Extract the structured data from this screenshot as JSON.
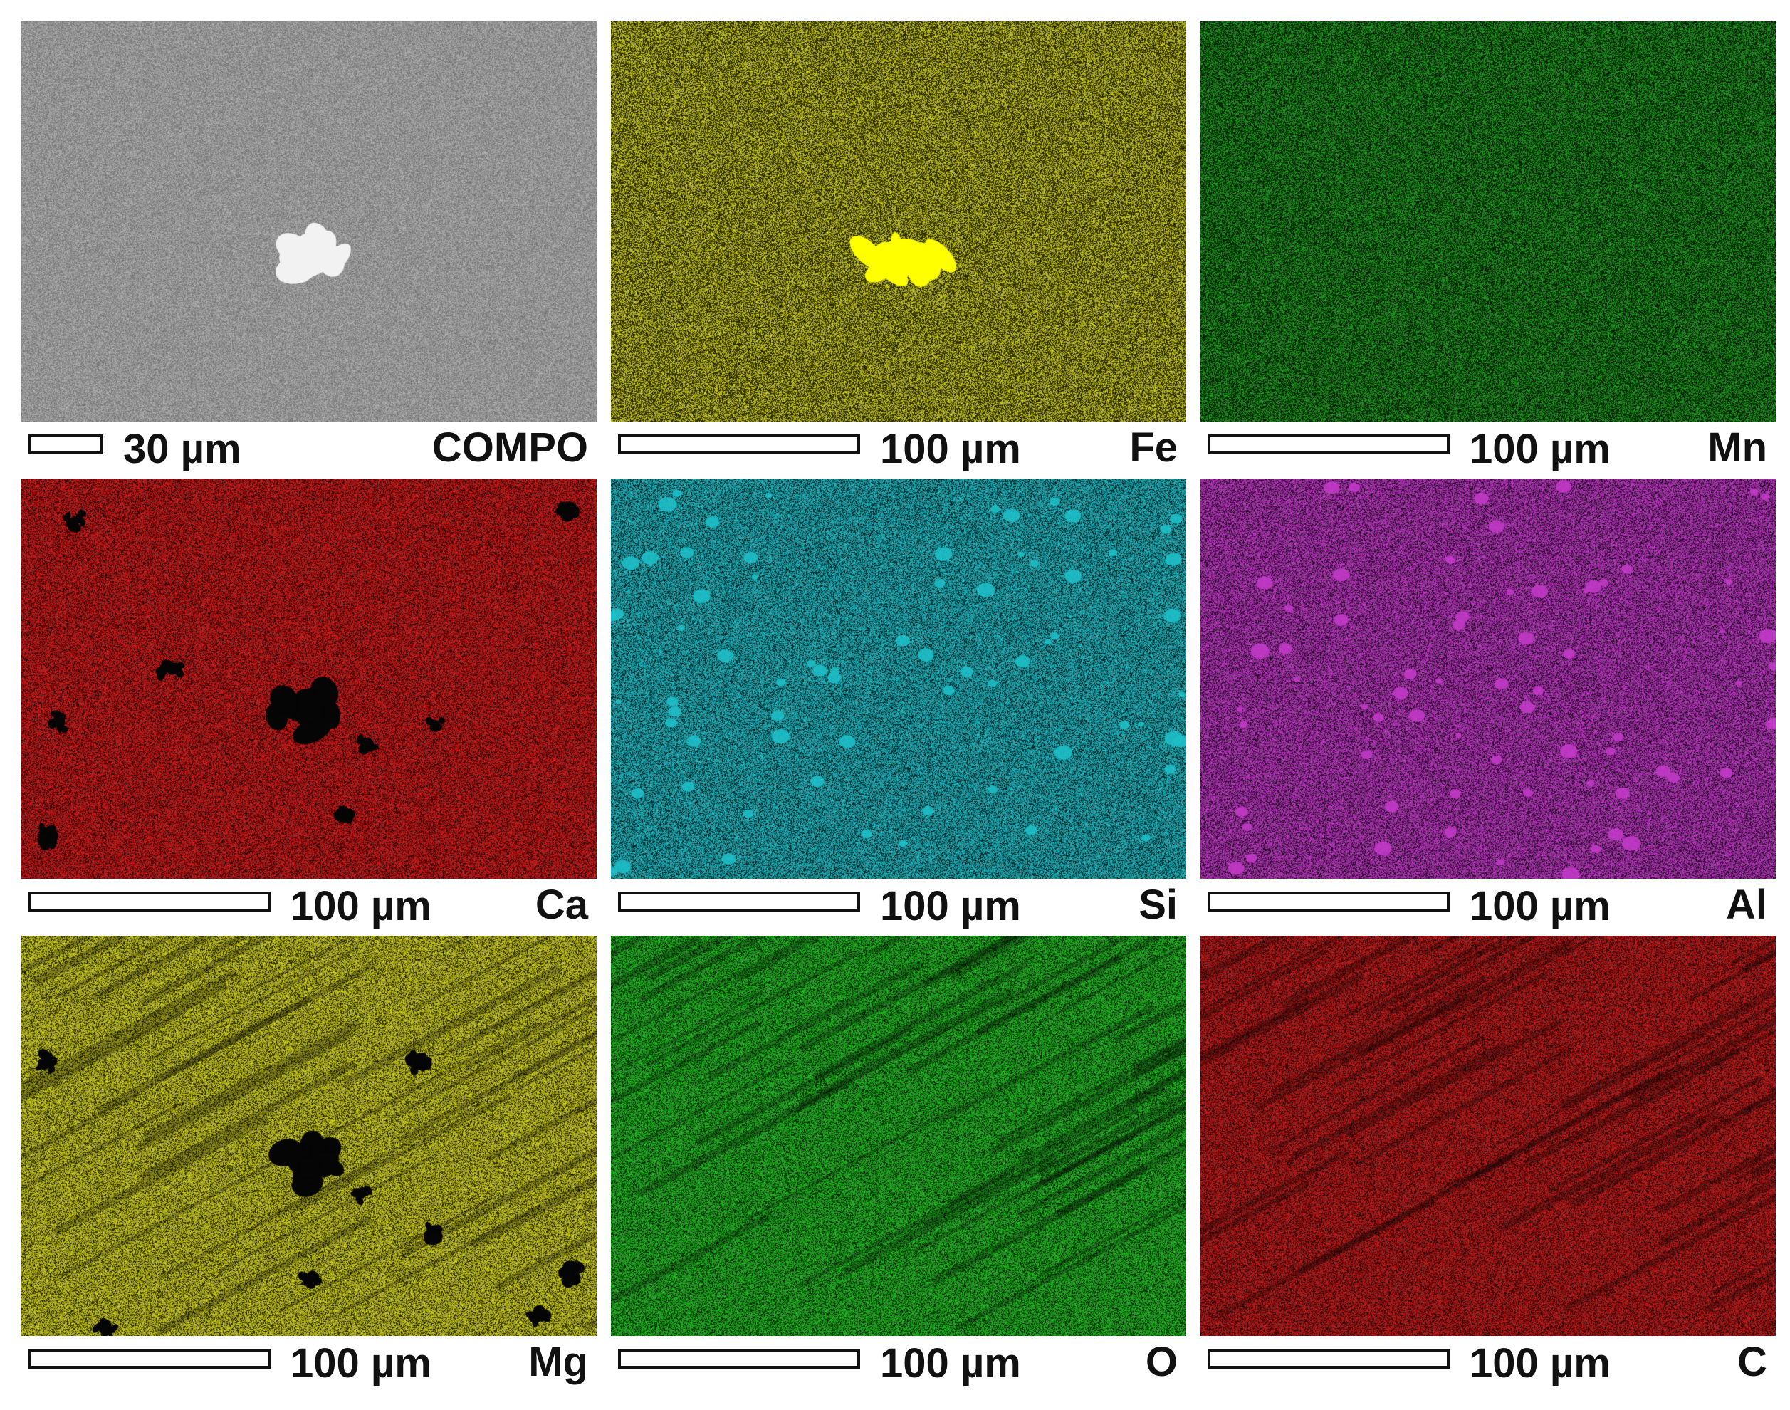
{
  "panels": [
    {
      "scale_label": "30 µm",
      "element": "COMPO",
      "color": "#9a9a9a",
      "feature": "bright"
    },
    {
      "scale_label": "100 µm",
      "element": "Fe",
      "color": "#d8d81a",
      "feature": "bright"
    },
    {
      "scale_label": "100 µm",
      "element": "Mn",
      "color": "#1fa51f",
      "feature": "none"
    },
    {
      "scale_label": "100 µm",
      "element": "Ca",
      "color": "#d81c1c",
      "feature": "dark"
    },
    {
      "scale_label": "100 µm",
      "element": "Si",
      "color": "#1fbfc8",
      "feature": "speckle"
    },
    {
      "scale_label": "100 µm",
      "element": "Al",
      "color": "#c23ac8",
      "feature": "speckle"
    },
    {
      "scale_label": "100 µm",
      "element": "Mg",
      "color": "#d4d41c",
      "feature": "dark"
    },
    {
      "scale_label": "100 µm",
      "element": "O",
      "color": "#22c022",
      "feature": "none"
    },
    {
      "scale_label": "100 µm",
      "element": "C",
      "color": "#c81c1c",
      "feature": "none"
    }
  ]
}
